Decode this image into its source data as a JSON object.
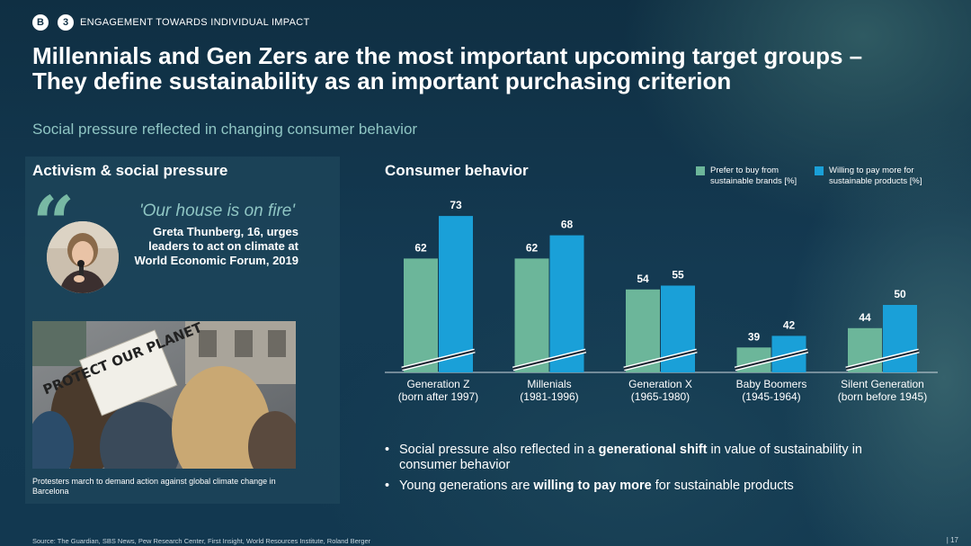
{
  "header": {
    "badge_b": "B",
    "badge_3": "3",
    "section": "ENGAGEMENT TOWARDS INDIVIDUAL IMPACT",
    "headline_line1": "Millennials and Gen Zers are the most important upcoming target groups –",
    "headline_line2": "They define sustainability as an important purchasing criterion",
    "subheadline": "Social pressure reflected in changing consumer behavior"
  },
  "left_panel": {
    "title": "Activism & social pressure",
    "quote": "'Our house is on fire'",
    "quote_caption": "Greta Thunberg, 16, urges leaders to act on climate at World Economic Forum, 2019",
    "photo_sign_text": "PROTECT OUR PLANET",
    "photo_caption": "Protesters march to demand action against global climate change in Barcelona"
  },
  "chart_title": "Consumer behavior",
  "colors": {
    "series1": "#6cb69a",
    "series2": "#1aa0d8",
    "accent_text": "#8fc5c3"
  },
  "chart_data": {
    "type": "bar",
    "categories": [
      "Generation Z (born after 1997)",
      "Millenials (1981-1996)",
      "Generation X (1965-1980)",
      "Baby Boomers (1945-1964)",
      "Silent Generation (born before 1945)"
    ],
    "category_lines": [
      [
        "Generation Z",
        "(born after 1997)"
      ],
      [
        "Millenials",
        "(1981-1996)"
      ],
      [
        "Generation X",
        "(1965-1980)"
      ],
      [
        "Baby Boomers",
        "(1945-1964)"
      ],
      [
        "Silent Generation",
        "(born before 1945)"
      ]
    ],
    "series": [
      {
        "name": "Prefer to buy from sustainable brands [%]",
        "values": [
          62,
          62,
          54,
          39,
          44
        ]
      },
      {
        "name": "Willing to pay more for sustainable products [%]",
        "values": [
          73,
          68,
          55,
          42,
          50
        ]
      }
    ],
    "axis_break": true
  },
  "bullets": [
    {
      "pre": "Social pressure also reflected in a ",
      "bold": "generational shift",
      "post": " in value of sustainability in consumer behavior"
    },
    {
      "pre": "Young generations are ",
      "bold": "willing to pay more",
      "post": " for sustainable products"
    }
  ],
  "footer": {
    "source": "Source: The Guardian, SBS News, Pew Research Center, First Insight, World Resources Institute, Roland Berger",
    "page": "| 17"
  }
}
